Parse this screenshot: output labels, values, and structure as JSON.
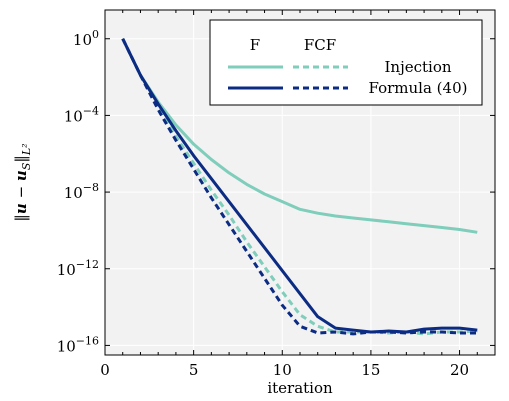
{
  "chart_data": {
    "type": "line",
    "xlabel": "iteration",
    "ylabel": "‖u − u_S‖_L²",
    "xlim": [
      0,
      22
    ],
    "ylim_log10": [
      -16.5,
      1.5
    ],
    "y_scale": "log",
    "grid": true,
    "x_ticks": [
      {
        "value": 0,
        "label": "0"
      },
      {
        "value": 5,
        "label": "5"
      },
      {
        "value": 10,
        "label": "10"
      },
      {
        "value": 15,
        "label": "15"
      },
      {
        "value": 20,
        "label": "20"
      }
    ],
    "y_ticks": [
      {
        "exp": 0,
        "base": "10",
        "sup": "0"
      },
      {
        "exp": -4,
        "base": "10",
        "sup": "−4"
      },
      {
        "exp": -8,
        "base": "10",
        "sup": "−8"
      },
      {
        "exp": -12,
        "base": "10",
        "sup": "−12"
      },
      {
        "exp": -16,
        "base": "10",
        "sup": "−16"
      }
    ],
    "legend": {
      "placement": "top-right",
      "col_headers": [
        "F",
        "FCF"
      ],
      "rows": [
        "Injection",
        "Formula (40)"
      ]
    },
    "colors": {
      "injection": "#7fcdbb",
      "formula": "#0c2c84",
      "plot_bg": "#f2f2f2",
      "grid": "#ffffff"
    },
    "series": [
      {
        "key": "injection-F",
        "group": "injection",
        "style": "solid",
        "x": [
          1,
          2,
          3,
          4,
          5,
          6,
          7,
          8,
          9,
          10,
          11,
          12,
          13,
          14,
          15,
          16,
          17,
          18,
          19,
          20,
          21
        ],
        "log10y": [
          0,
          -1.9,
          -3.3,
          -4.5,
          -5.5,
          -6.3,
          -7.0,
          -7.6,
          -8.1,
          -8.5,
          -8.9,
          -9.1,
          -9.25,
          -9.35,
          -9.45,
          -9.55,
          -9.65,
          -9.75,
          -9.85,
          -9.95,
          -10.1
        ]
      },
      {
        "key": "injection-FCF",
        "group": "injection",
        "style": "dashed",
        "x": [
          1,
          2,
          3,
          4,
          5,
          6,
          7,
          8,
          9,
          10,
          11,
          12,
          13,
          14,
          15,
          16,
          17,
          18,
          19,
          20,
          21
        ],
        "log10y": [
          0,
          -1.9,
          -3.6,
          -5.1,
          -6.5,
          -7.9,
          -9.2,
          -10.6,
          -11.9,
          -13.2,
          -14.4,
          -15.0,
          -15.3,
          -15.3,
          -15.3,
          -15.35,
          -15.3,
          -15.4,
          -15.3,
          -15.3,
          -15.25
        ]
      },
      {
        "key": "formula-F",
        "group": "formula",
        "style": "solid",
        "x": [
          1,
          2,
          3,
          4,
          5,
          6,
          7,
          8,
          9,
          10,
          11,
          12,
          13,
          14,
          15,
          16,
          17,
          18,
          19,
          20,
          21
        ],
        "log10y": [
          0,
          -1.9,
          -3.4,
          -4.8,
          -6.1,
          -7.3,
          -8.5,
          -9.7,
          -10.9,
          -12.1,
          -13.3,
          -14.5,
          -15.1,
          -15.2,
          -15.3,
          -15.25,
          -15.3,
          -15.15,
          -15.1,
          -15.1,
          -15.2
        ]
      },
      {
        "key": "formula-FCF",
        "group": "formula",
        "style": "dashed",
        "x": [
          1,
          2,
          3,
          4,
          5,
          6,
          7,
          8,
          9,
          10,
          11,
          12,
          13,
          14,
          15,
          16,
          17,
          18,
          19,
          20,
          21
        ],
        "log10y": [
          0,
          -1.9,
          -3.7,
          -5.3,
          -6.8,
          -8.3,
          -9.7,
          -11.1,
          -12.5,
          -13.9,
          -15.0,
          -15.35,
          -15.3,
          -15.4,
          -15.3,
          -15.3,
          -15.35,
          -15.3,
          -15.3,
          -15.35,
          -15.35
        ]
      }
    ]
  }
}
